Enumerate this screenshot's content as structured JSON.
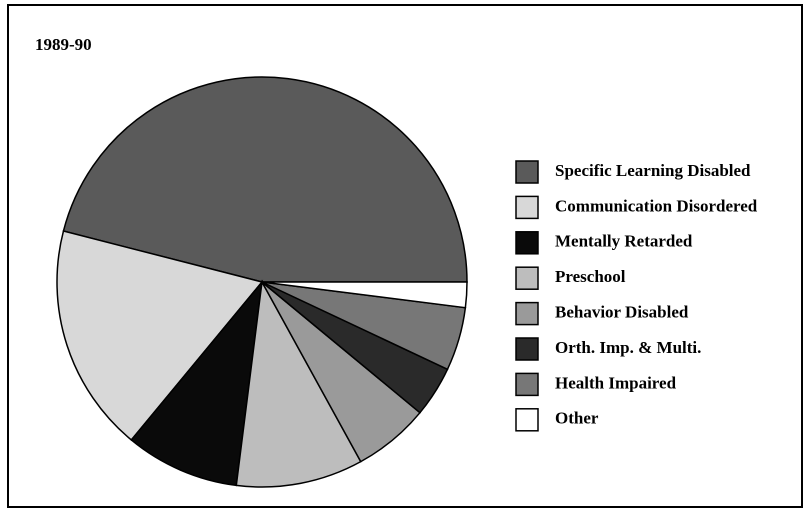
{
  "chart_data": {
    "type": "pie",
    "title": "1989-90",
    "categories": [
      "Specific Learning Disabled",
      "Communication Disordered",
      "Mentally Retarded",
      "Preschool",
      "Behavior Disabled",
      "Orth. Imp. & Multi.",
      "Health Impaired",
      "Other"
    ],
    "values": [
      46,
      18,
      9,
      10,
      6,
      4,
      5,
      2
    ],
    "colors": [
      "#5a5a5a",
      "#d8d8d8",
      "#0a0a0a",
      "#bdbdbd",
      "#9a9a9a",
      "#2a2a2a",
      "#777777",
      "#ffffff"
    ]
  }
}
